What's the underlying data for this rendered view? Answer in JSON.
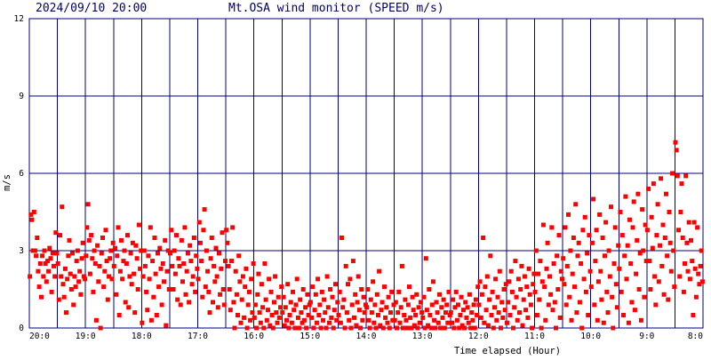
{
  "header": {
    "datetime": "2024/09/10 20:00",
    "title": "Mt.OSA wind monitor (SPEED m/s)"
  },
  "colors": {
    "grid": "#000080",
    "points": "#ff0000",
    "header_text": "#000066",
    "background": "#ffffff"
  },
  "chart_data": {
    "type": "scatter",
    "title": "Mt.OSA wind monitor (SPEED m/s)",
    "xlabel": "Time elapsed (Hour)",
    "ylabel": "m/s",
    "ylim": [
      0,
      12
    ],
    "xlim": [
      20,
      8
    ],
    "x_direction": "descending (newer at left)",
    "grid": true,
    "y_ticks": [
      "0",
      "3",
      "6",
      "9",
      "12"
    ],
    "x_ticks": [
      "20:0",
      "19:0",
      "18:0",
      "17:0",
      "16:0",
      "15:0",
      "14:0",
      "13:0",
      "12:0",
      "11:0",
      "10:0",
      "9:0",
      "8:0"
    ],
    "series": [
      {
        "hour_segments": [
          {
            "start": 20.0,
            "end": 19.5,
            "speed_pattern": [
              2.0,
              4.4,
              4.2,
              3.0,
              4.5,
              3.0,
              2.8,
              3.5,
              2.2,
              1.6,
              2.5,
              1.2,
              2.8,
              2.0,
              3.0,
              2.5,
              1.8,
              2.6,
              2.2,
              3.1,
              2.7,
              1.4,
              2.9,
              2.4,
              2.0,
              3.7,
              2.9
            ]
          },
          {
            "start": 19.5,
            "end": 19.0,
            "speed_pattern": [
              2.5,
              1.1,
              3.6,
              2.0,
              4.7,
              1.7,
              1.2,
              2.3,
              0.6,
              1.9,
              2.8,
              3.4,
              2.1,
              1.5,
              2.9,
              0.9,
              2.0,
              1.6,
              2.6,
              3.0,
              1.8,
              2.2,
              1.3,
              2.7,
              3.3,
              2.0,
              1.9
            ]
          },
          {
            "start": 19.0,
            "end": 18.5,
            "speed_pattern": [
              2.8,
              3.9,
              4.8,
              3.4,
              2.1,
              3.6,
              2.7,
              1.4,
              3.0,
              2.5,
              0.3,
              3.2,
              1.8,
              2.4,
              0.0,
              2.9,
              3.5,
              1.6,
              2.2,
              3.8,
              2.6,
              1.1,
              2.0,
              2.7,
              3.0,
              1.9,
              3.3
            ]
          },
          {
            "start": 18.5,
            "end": 18.0,
            "speed_pattern": [
              2.4,
              3.1,
              1.3,
              2.8,
              3.9,
              0.5,
              2.2,
              3.4,
              1.9,
              2.6,
              3.0,
              1.0,
              2.5,
              3.6,
              0.8,
              2.0,
              2.9,
              1.7,
              3.3,
              2.1,
              0.6,
              3.2,
              2.7,
              1.5,
              4.0,
              2.3,
              3.0
            ]
          },
          {
            "start": 18.0,
            "end": 17.5,
            "speed_pattern": [
              0.2,
              2.0,
              3.0,
              2.4,
              1.4,
              0.7,
              2.8,
              1.9,
              3.9,
              0.3,
              2.6,
              1.2,
              3.5,
              2.1,
              0.5,
              2.9,
              1.6,
              3.1,
              2.3,
              0.9,
              2.5,
              1.8,
              3.4,
              0.1,
              2.2,
              3.0,
              1.5
            ]
          },
          {
            "start": 17.5,
            "end": 17.0,
            "speed_pattern": [
              2.9,
              3.8,
              2.4,
              1.5,
              3.0,
              2.1,
              3.6,
              1.1,
              2.7,
              2.4,
              0.9,
              3.4,
              1.8,
              2.5,
              3.9,
              1.3,
              2.2,
              2.9,
              1.0,
              3.2,
              2.6,
              1.7,
              2.0,
              3.5,
              1.4,
              2.8,
              2.3
            ]
          },
          {
            "start": 17.0,
            "end": 16.5,
            "speed_pattern": [
              1.9,
              4.1,
              3.3,
              2.6,
              1.2,
              3.8,
              4.6,
              1.6,
              3.0,
              2.2,
              1.4,
              0.6,
              2.7,
              3.5,
              1.0,
              2.4,
              1.8,
              3.1,
              2.0,
              0.8,
              2.9,
              1.3,
              2.3,
              3.7,
              1.5,
              0.9,
              2.6
            ]
          },
          {
            "start": 16.5,
            "end": 16.0,
            "speed_pattern": [
              3.8,
              3.3,
              2.4,
              1.5,
              0.7,
              2.6,
              3.9,
              1.0,
              0.0,
              2.2,
              1.3,
              0.5,
              2.8,
              1.8,
              0.2,
              1.1,
              2.0,
              0.4,
              1.6,
              2.3,
              0.0,
              0.9,
              1.4,
              0.3,
              1.9,
              0.6,
              2.5
            ]
          },
          {
            "start": 16.0,
            "end": 15.5,
            "speed_pattern": [
              0.4,
              0.9,
              0.0,
              1.3,
              2.1,
              0.6,
              0.2,
              1.7,
              0.8,
              0.0,
              2.5,
              1.1,
              0.3,
              0.7,
              1.9,
              0.1,
              1.4,
              0.5,
              0.0,
              1.0,
              2.0,
              0.6,
              0.2,
              1.2,
              0.4,
              0.8,
              1.6
            ]
          },
          {
            "start": 15.5,
            "end": 15.0,
            "speed_pattern": [
              0.6,
              1.2,
              0.1,
              0.8,
              0.3,
              1.7,
              0.0,
              0.5,
              1.0,
              0.2,
              1.4,
              0.7,
              0.0,
              0.9,
              1.9,
              0.4,
              0.0,
              1.1,
              0.6,
              0.2,
              1.5,
              0.3,
              0.8,
              0.0,
              1.3,
              0.5,
              0.9
            ]
          },
          {
            "start": 15.0,
            "end": 14.5,
            "speed_pattern": [
              1.0,
              0.4,
              1.6,
              0.0,
              0.7,
              1.3,
              0.2,
              1.9,
              0.5,
              0.9,
              0.0,
              1.4,
              0.3,
              1.1,
              0.6,
              0.0,
              2.0,
              0.8,
              0.2,
              1.5,
              0.4,
              1.2,
              0.0,
              0.7,
              1.7,
              0.3,
              1.0
            ]
          },
          {
            "start": 14.5,
            "end": 14.0,
            "speed_pattern": [
              0.5,
              1.4,
              0.2,
              3.5,
              0.8,
              1.1,
              0.0,
              2.4,
              0.6,
              1.7,
              0.3,
              1.9,
              0.0,
              0.9,
              2.6,
              0.4,
              1.3,
              0.1,
              1.0,
              2.0,
              0.7,
              0.0,
              1.5,
              0.3,
              1.2,
              0.6,
              0.9
            ]
          },
          {
            "start": 14.0,
            "end": 13.5,
            "speed_pattern": [
              0.8,
              1.5,
              0.3,
              0.0,
              1.1,
              0.6,
              1.8,
              0.2,
              0.9,
              0.0,
              1.3,
              0.5,
              2.2,
              0.1,
              0.7,
              1.0,
              0.0,
              1.6,
              0.4,
              0.8,
              0.2,
              1.2,
              0.0,
              0.6,
              1.4,
              0.3,
              0.9
            ]
          },
          {
            "start": 13.5,
            "end": 13.0,
            "speed_pattern": [
              0.3,
              1.0,
              0.0,
              0.6,
              1.4,
              0.2,
              0.8,
              2.4,
              0.0,
              0.5,
              1.1,
              0.3,
              0.0,
              0.9,
              1.6,
              0.4,
              0.0,
              1.2,
              0.7,
              0.1,
              0.5,
              1.3,
              0.0,
              0.8,
              0.2,
              1.0,
              0.6
            ]
          },
          {
            "start": 13.0,
            "end": 12.5,
            "speed_pattern": [
              0.4,
              1.2,
              0.0,
              2.7,
              0.7,
              0.1,
              1.5,
              0.5,
              0.0,
              0.9,
              1.8,
              0.3,
              0.0,
              1.0,
              0.6,
              0.2,
              1.3,
              0.0,
              0.8,
              0.4,
              1.1,
              0.0,
              0.6,
              0.9,
              0.2,
              1.4,
              0.5
            ]
          },
          {
            "start": 12.5,
            "end": 12.0,
            "speed_pattern": [
              0.6,
              0.2,
              1.1,
              0.0,
              0.8,
              1.4,
              0.3,
              0.9,
              0.0,
              0.5,
              1.2,
              0.1,
              0.7,
              0.0,
              1.0,
              0.4,
              0.8,
              0.2,
              1.3,
              0.0,
              0.6,
              0.3,
              0.9,
              0.0,
              1.1,
              0.5,
              1.6
            ]
          },
          {
            "start": 12.0,
            "end": 11.5,
            "speed_pattern": [
              0.9,
              1.8,
              0.4,
              1.3,
              3.5,
              0.2,
              1.6,
              0.7,
              2.0,
              0.1,
              1.1,
              2.8,
              0.5,
              1.4,
              0.0,
              0.8,
              1.9,
              0.3,
              1.2,
              0.6,
              2.2,
              0.0,
              1.0,
              0.4,
              1.5,
              0.7,
              1.7
            ]
          },
          {
            "start": 11.5,
            "end": 11.0,
            "speed_pattern": [
              0.2,
              1.0,
              1.8,
              0.5,
              2.2,
              1.4,
              0.0,
              0.8,
              2.6,
              1.2,
              0.3,
              1.9,
              0.6,
              1.5,
              2.4,
              0.1,
              1.1,
              2.0,
              0.7,
              1.6,
              0.4,
              2.3,
              1.3,
              0.9,
              0.0,
              1.7,
              2.1
            ]
          },
          {
            "start": 11.0,
            "end": 10.5,
            "speed_pattern": [
              1.4,
              3.0,
              0.5,
              2.1,
              1.1,
              2.6,
              0.0,
              1.8,
              4.0,
              1.6,
              0.3,
              2.3,
              3.3,
              0.9,
              2.0,
              1.3,
              3.9,
              0.7,
              2.5,
              1.0,
              0.0,
              2.8,
              1.5,
              3.6,
              0.4,
              2.2,
              1.9
            ]
          },
          {
            "start": 10.5,
            "end": 10.0,
            "speed_pattern": [
              2.7,
              1.7,
              3.9,
              0.9,
              2.4,
              4.4,
              1.2,
              3.0,
              0.3,
              2.1,
              3.5,
              1.6,
              4.8,
              0.6,
              2.8,
              3.3,
              1.0,
              2.5,
              0.0,
              3.8,
              1.9,
              4.3,
              1.4,
              2.9,
              0.5,
              3.6,
              2.2
            ]
          },
          {
            "start": 10.0,
            "end": 9.5,
            "speed_pattern": [
              1.6,
              3.3,
              5.0,
              0.9,
              2.6,
              3.8,
              0.3,
              1.8,
              4.4,
              2.2,
              1.1,
              3.5,
              0.2,
              2.8,
              4.1,
              1.4,
              0.6,
              3.0,
              2.0,
              4.7,
              1.2,
              0.0,
              2.5,
              3.9,
              1.7,
              0.8,
              3.2
            ]
          },
          {
            "start": 9.5,
            "end": 9.0,
            "speed_pattern": [
              2.3,
              4.5,
              1.4,
              3.6,
              0.5,
              2.8,
              5.1,
              1.9,
              3.2,
              0.2,
              4.2,
              2.5,
              1.0,
              3.9,
              4.9,
              0.7,
              2.1,
              3.4,
              5.2,
              1.5,
              2.9,
              0.3,
              4.6,
              3.0,
              1.2,
              4.0,
              2.6
            ]
          },
          {
            "start": 9.0,
            "end": 8.5,
            "speed_pattern": [
              3.8,
              5.4,
              2.6,
              1.5,
              4.3,
              3.1,
              5.6,
              2.0,
              0.9,
              3.6,
              4.8,
              1.8,
              3.2,
              5.8,
              2.4,
              4.0,
              1.3,
              3.5,
              5.2,
              2.8,
              1.1,
              4.5,
              3.3,
              2.2,
              6.0,
              3.0,
              1.6
            ]
          },
          {
            "start": 8.5,
            "end": 8.0,
            "speed_pattern": [
              7.2,
              6.9,
              5.9,
              3.8,
              2.0,
              4.5,
              5.6,
              3.5,
              1.4,
              2.5,
              5.9,
              3.3,
              2.2,
              4.1,
              1.9,
              3.4,
              2.6,
              0.5,
              4.1,
              2.3,
              1.2,
              3.9,
              2.1,
              1.7,
              2.4,
              3.0,
              1.8
            ]
          }
        ]
      }
    ]
  },
  "axis_text": {
    "y_unit": "m/s",
    "x_caption": "Time elapsed (Hour)"
  }
}
